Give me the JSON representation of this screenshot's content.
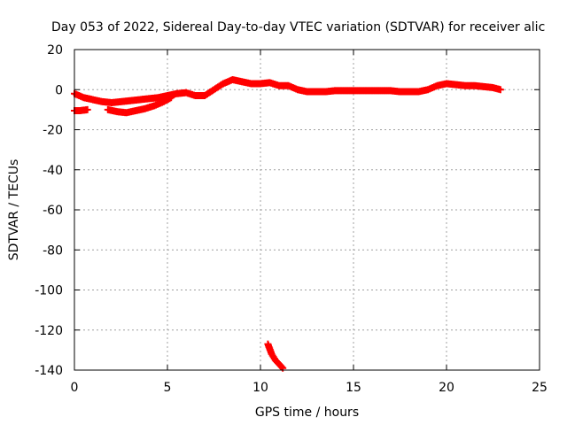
{
  "chart_data": {
    "type": "scatter",
    "title": "Day 053 of 2022, Sidereal Day-to-day VTEC variation (SDTVAR) for receiver alic",
    "xlabel": "GPS time / hours",
    "ylabel": "SDTVAR / TECUs",
    "xlim": [
      0,
      25
    ],
    "ylim": [
      -140,
      20
    ],
    "xticks": [
      0,
      5,
      10,
      15,
      20,
      25
    ],
    "yticks": [
      20,
      0,
      -20,
      -40,
      -60,
      -80,
      -100,
      -120,
      -140
    ],
    "grid": true,
    "legend": "none",
    "marker": "plus",
    "series_color": "#ff0000",
    "series": [
      {
        "points": [
          [
            0.0,
            -2
          ],
          [
            0.5,
            -4
          ],
          [
            1.0,
            -5
          ],
          [
            1.5,
            -6
          ],
          [
            2.0,
            -6.5
          ],
          [
            2.5,
            -6
          ],
          [
            3.0,
            -5.5
          ],
          [
            3.5,
            -5
          ],
          [
            4.0,
            -4.5
          ],
          [
            4.5,
            -4
          ],
          [
            5.0,
            -3
          ],
          [
            5.5,
            -2
          ],
          [
            6.0,
            -1.5
          ],
          [
            6.5,
            -3
          ],
          [
            7.0,
            -3
          ],
          [
            7.5,
            0
          ],
          [
            8.0,
            3
          ],
          [
            8.5,
            5
          ],
          [
            9.0,
            4
          ],
          [
            9.5,
            3
          ],
          [
            10.0,
            3
          ],
          [
            10.5,
            3.5
          ],
          [
            11.0,
            2
          ],
          [
            11.5,
            2
          ],
          [
            12.0,
            0
          ],
          [
            12.5,
            -1
          ],
          [
            13.0,
            -1
          ],
          [
            13.5,
            -1
          ],
          [
            14.0,
            -0.5
          ],
          [
            14.5,
            -0.5
          ],
          [
            15.0,
            -0.5
          ],
          [
            15.5,
            -0.5
          ],
          [
            16.0,
            -0.5
          ],
          [
            16.5,
            -0.5
          ],
          [
            17.0,
            -0.5
          ],
          [
            17.5,
            -1
          ],
          [
            18.0,
            -1
          ],
          [
            18.5,
            -1
          ],
          [
            19.0,
            0
          ],
          [
            19.5,
            2
          ],
          [
            20.0,
            3
          ],
          [
            20.5,
            2.5
          ],
          [
            21.0,
            2
          ],
          [
            21.5,
            2
          ],
          [
            22.0,
            1.5
          ],
          [
            22.5,
            1
          ],
          [
            22.9,
            0
          ]
        ]
      },
      {
        "points": [
          [
            0.0,
            -10.5
          ],
          [
            0.3,
            -10.5
          ],
          [
            0.7,
            -10
          ]
        ]
      },
      {
        "points": [
          [
            1.8,
            -10
          ],
          [
            2.3,
            -11
          ],
          [
            2.8,
            -11.5
          ],
          [
            3.3,
            -10.5
          ],
          [
            3.8,
            -9.5
          ],
          [
            4.3,
            -8
          ],
          [
            4.8,
            -6
          ],
          [
            5.2,
            -4
          ]
        ]
      },
      {
        "points": [
          [
            10.4,
            -127
          ],
          [
            10.6,
            -132
          ],
          [
            10.8,
            -135
          ],
          [
            11.0,
            -137
          ],
          [
            11.2,
            -139
          ]
        ]
      }
    ]
  }
}
